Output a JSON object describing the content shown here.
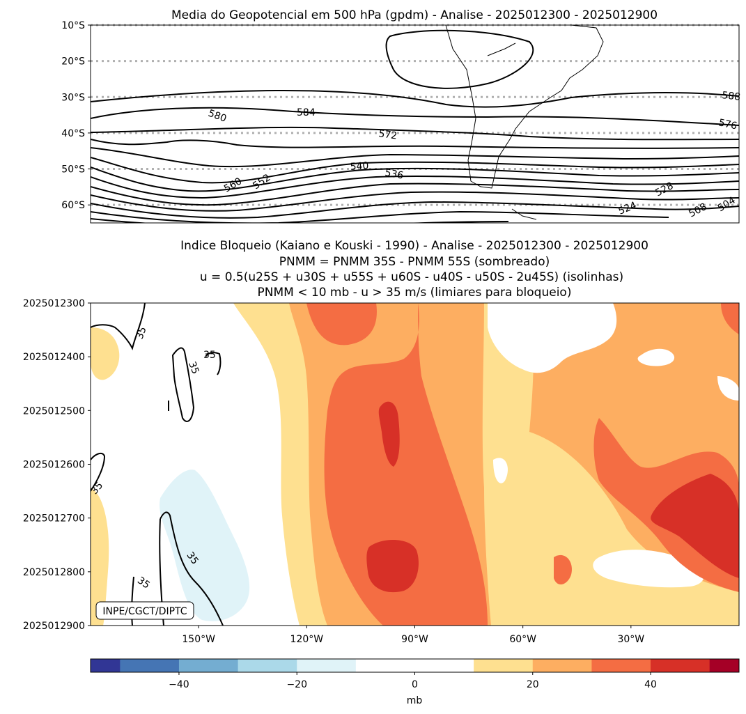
{
  "chart_data": [
    {
      "type": "contour-map",
      "title": "Media do Geopotencial em 500 hPa (gpdm) - Analise - 2025012300 - 2025012900",
      "ylabel": "",
      "xlim": [
        -180,
        0
      ],
      "ylim": [
        -65,
        -10
      ],
      "y_ticks": [
        -10,
        -20,
        -30,
        -40,
        -50,
        -60
      ],
      "y_tick_labels": [
        "10°S",
        "20°S",
        "30°S",
        "40°S",
        "50°S",
        "60°S"
      ],
      "gridlines": "dotted gray at y ticks",
      "contour_labels": [
        "580",
        "584",
        "572",
        "540",
        "536",
        "560",
        "552",
        "588",
        "576",
        "528",
        "524",
        "508",
        "504"
      ]
    },
    {
      "type": "filled-contour",
      "title_lines": [
        "Indice Bloqueio (Kaiano e Kouski - 1990) - Analise - 2025012300 - 2025012900",
        "PNMM = PNMM 35S - PNMM 55S (sombreado)",
        "u = 0.5(u25S + u30S + u55S + u60S - u40S - u50S - 2u45S) (isolinhas)",
        "PNMM < 10 mb - u > 35 m/s (limiares para bloqueio)"
      ],
      "xlim": [
        -180,
        0
      ],
      "x_ticks": [
        -150,
        -120,
        -90,
        -60,
        -30
      ],
      "x_tick_labels": [
        "150°W",
        "120°W",
        "90°W",
        "60°W",
        "30°W"
      ],
      "y_tick_labels": [
        "2025012300",
        "2025012400",
        "2025012500",
        "2025012600",
        "2025012700",
        "2025012800",
        "2025012900"
      ],
      "contour_labels": [
        "35",
        "35",
        "35",
        "35",
        "35",
        "35"
      ],
      "watermark": "INPE/CGCT/DIPTC"
    },
    {
      "type": "colorbar",
      "range": [
        -55,
        55
      ],
      "levels": [
        -55,
        -50,
        -40,
        -30,
        -20,
        -10,
        10,
        20,
        30,
        40,
        50,
        55
      ],
      "colors": [
        "#313695",
        "#4575b4",
        "#74add1",
        "#abd9e9",
        "#e0f3f8",
        "#ffffff",
        "#fee090",
        "#fdae61",
        "#f46d43",
        "#d73027",
        "#a50026"
      ],
      "tick_values": [
        -40,
        -20,
        0,
        20,
        40
      ],
      "tick_labels": [
        "−40",
        "−20",
        "0",
        "20",
        "40"
      ],
      "xlabel": "mb"
    }
  ]
}
